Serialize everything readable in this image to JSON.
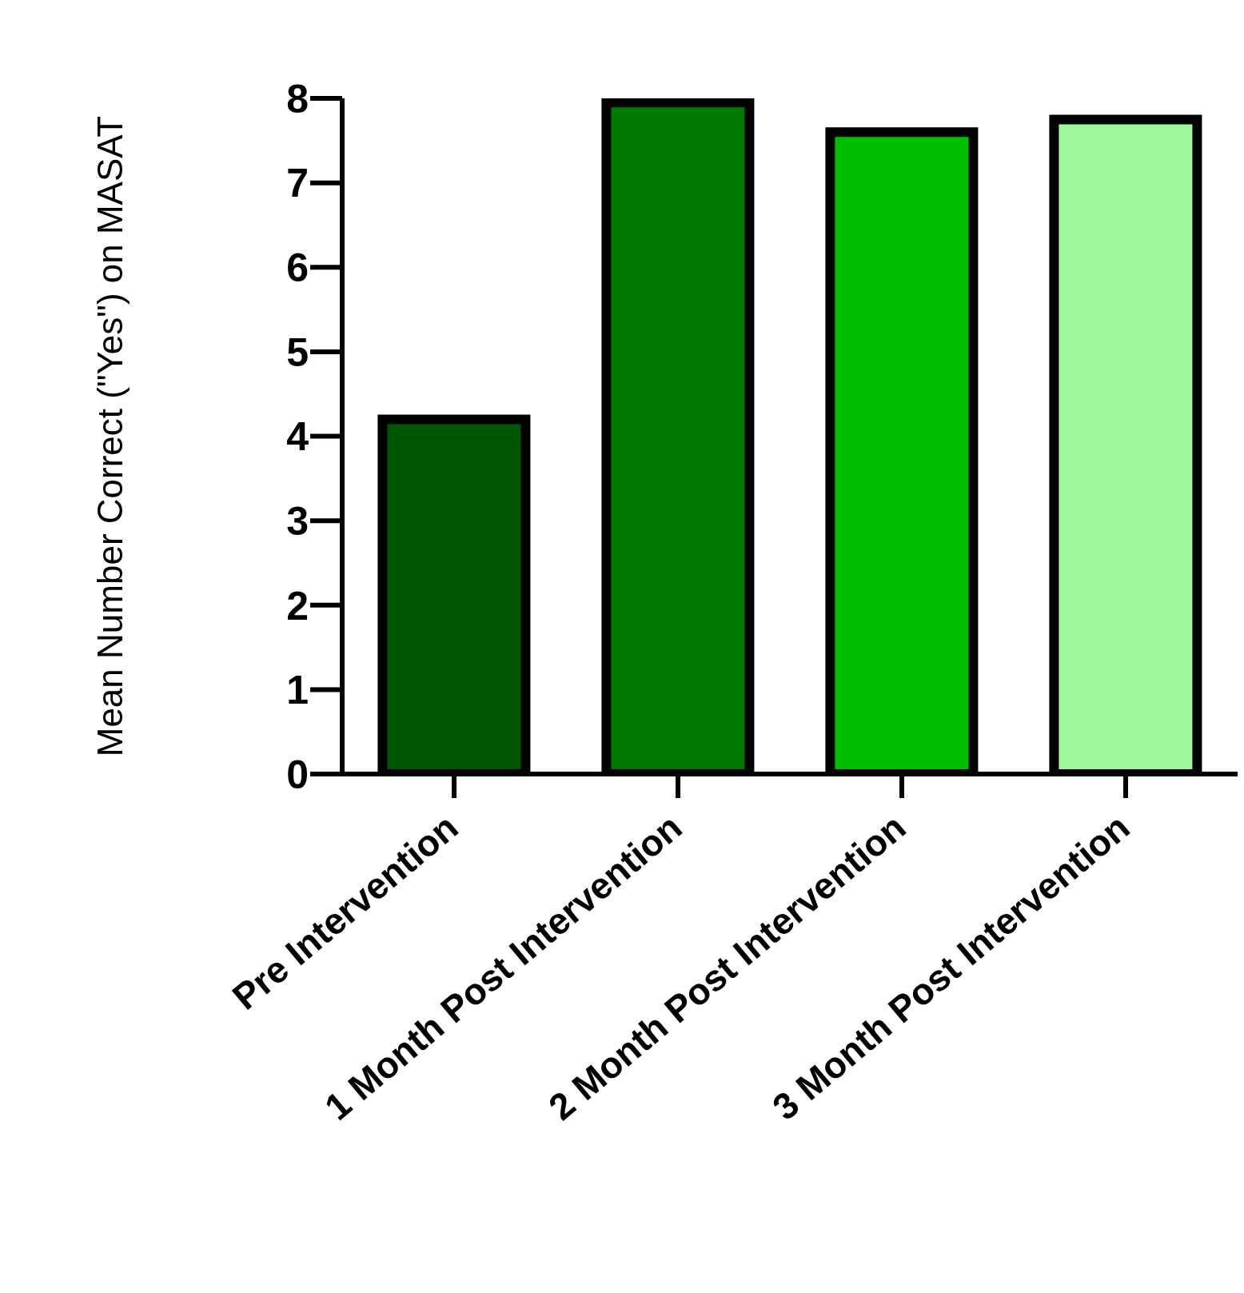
{
  "chart_data": {
    "type": "bar",
    "ylabel": "Mean Number Correct (\"Yes\") on MASAT",
    "categories": [
      "Pre Intervention",
      "1 Month Post Intervention",
      "2 Month Post Intervention",
      "3 Month Post Intervention"
    ],
    "values": [
      4.2,
      7.95,
      7.6,
      7.75
    ],
    "colors": [
      "#005500",
      "#007700",
      "#00bf00",
      "#a0f79c"
    ],
    "ylim": [
      0,
      8
    ],
    "yticks": [
      0,
      1,
      2,
      3,
      4,
      5,
      6,
      7,
      8
    ],
    "grid": false,
    "legend": false
  }
}
